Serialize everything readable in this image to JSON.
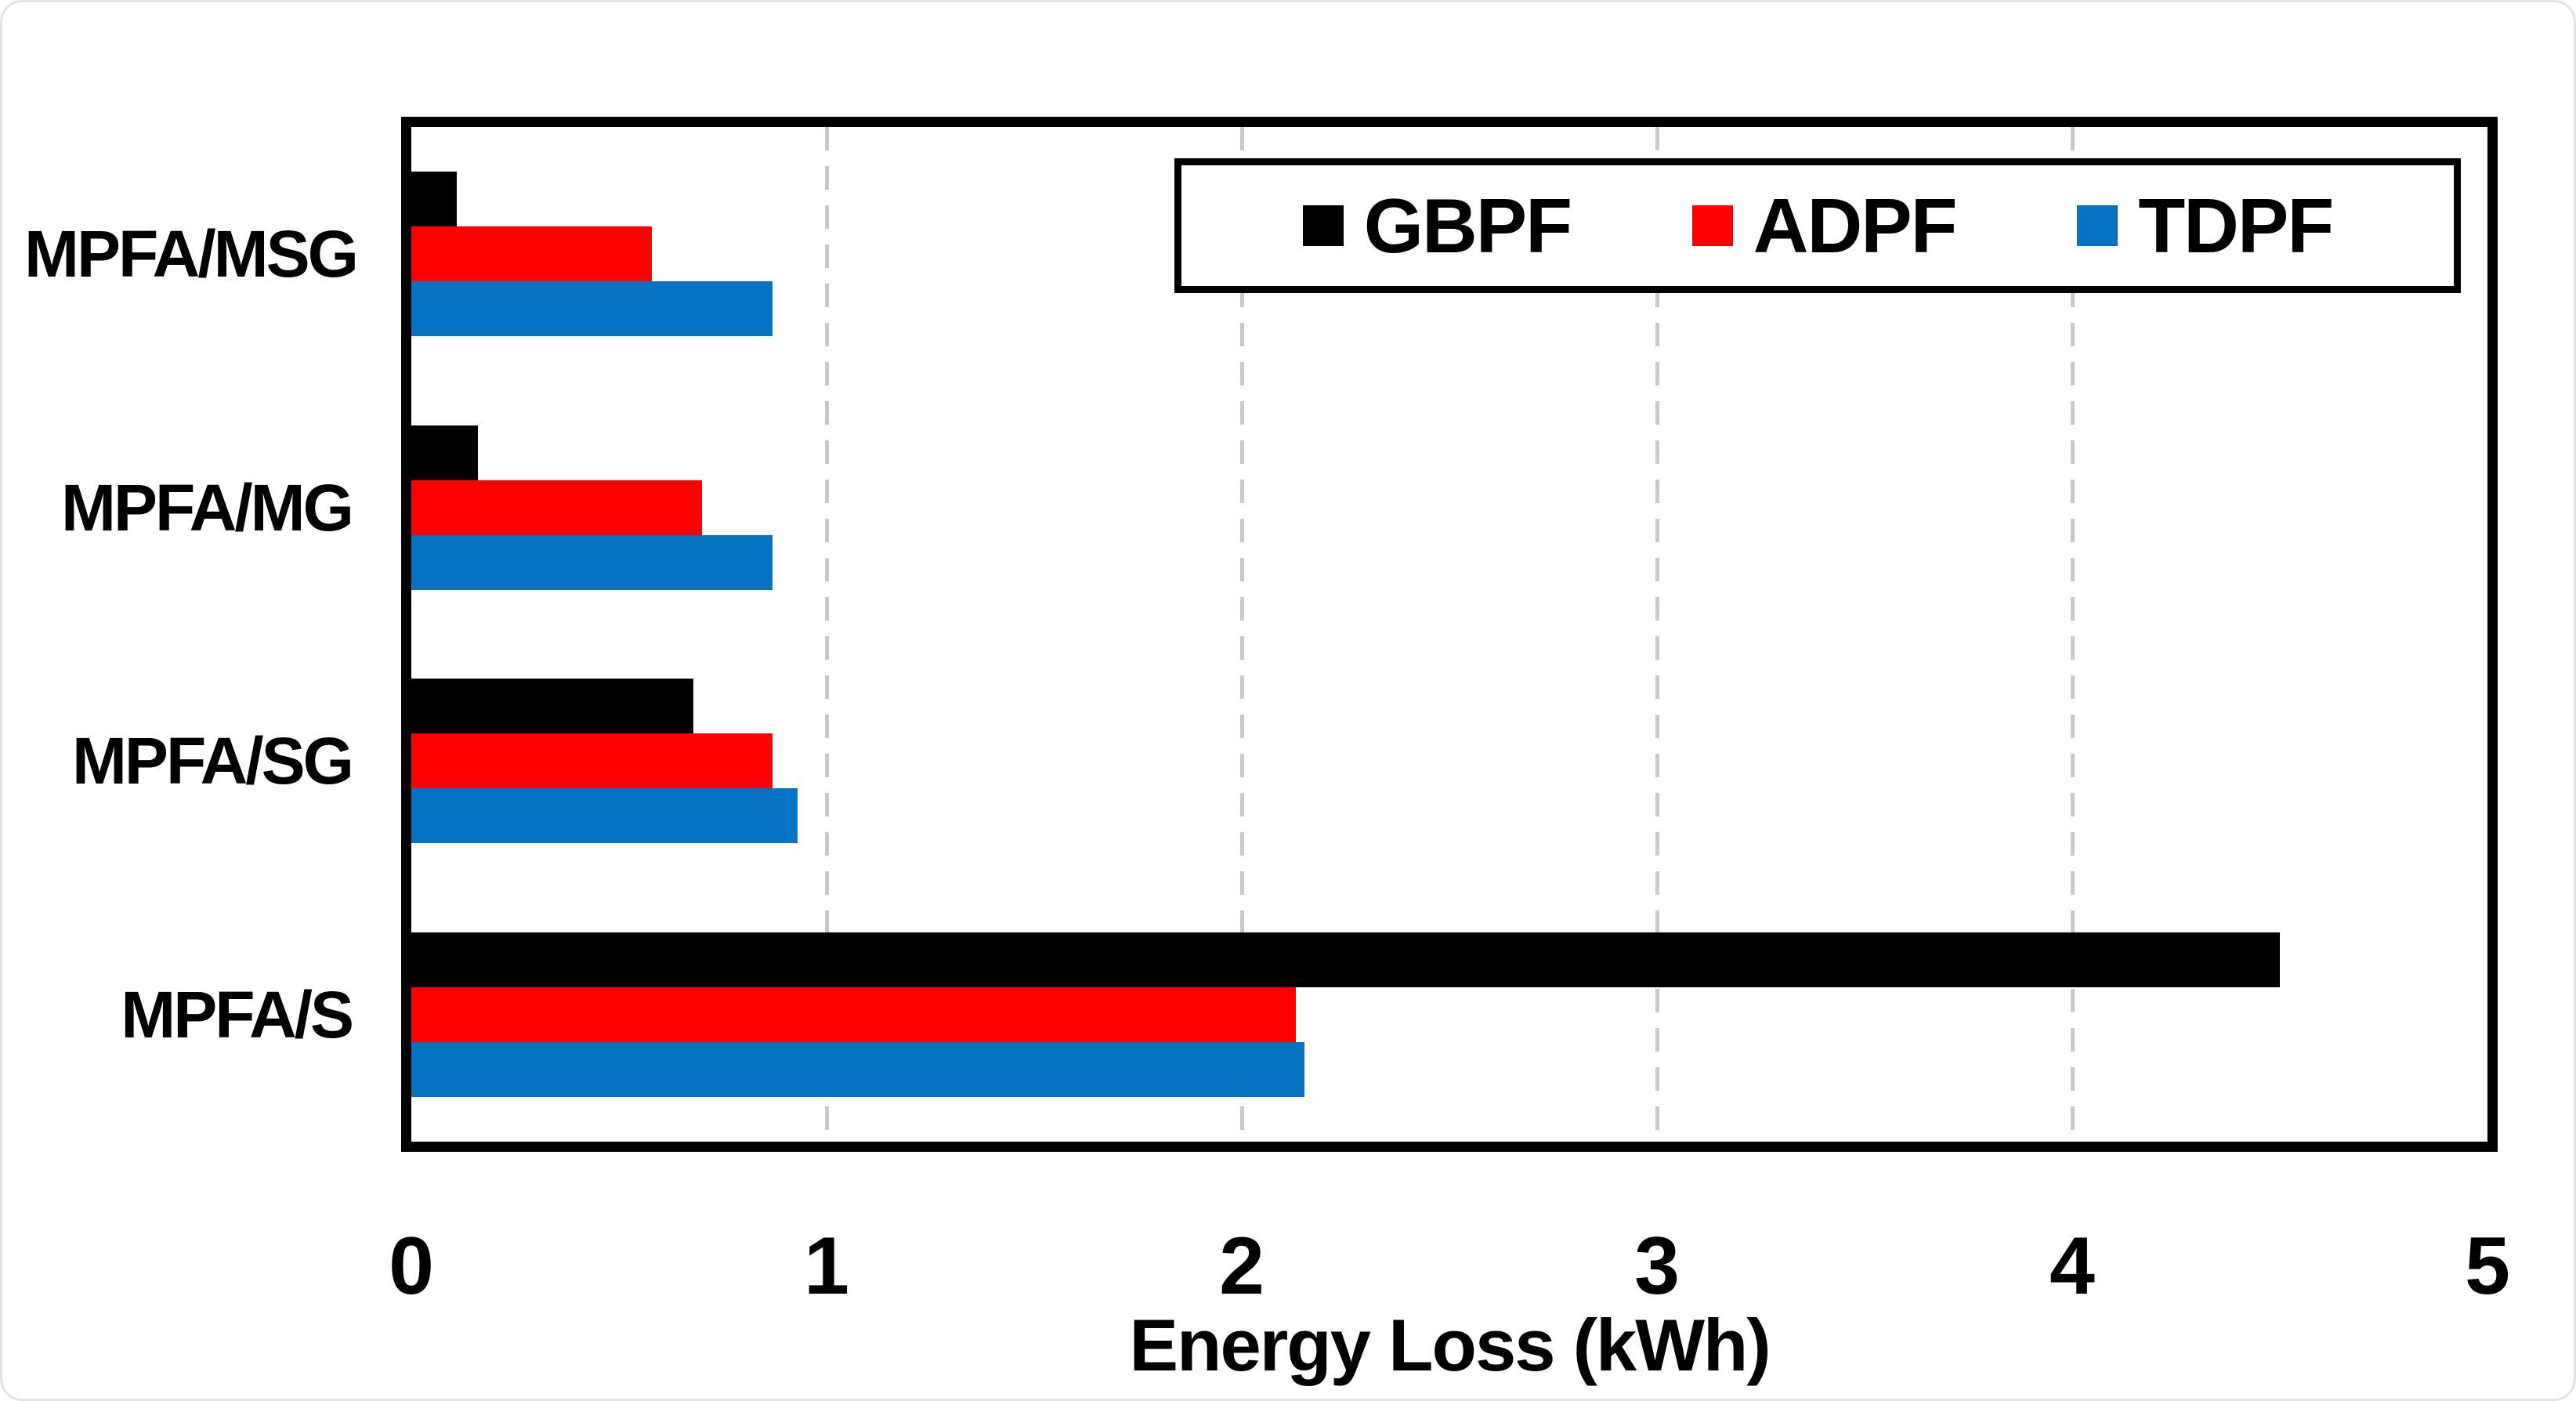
{
  "chart_data": {
    "type": "bar",
    "orientation": "horizontal",
    "title": "",
    "xlabel": "Energy Loss (kWh)",
    "ylabel": "",
    "categories": [
      "MPFA/MSG",
      "MPFA/MG",
      "MPFA/SG",
      "MPFA/S"
    ],
    "series": [
      {
        "name": "GBPF",
        "color": "#000000",
        "values": [
          0.11,
          0.16,
          0.68,
          4.5
        ]
      },
      {
        "name": "ADPF",
        "color": "#FF0000",
        "values": [
          0.58,
          0.7,
          0.87,
          2.13
        ]
      },
      {
        "name": "TDPF",
        "color": "#0572C2",
        "values": [
          0.87,
          0.87,
          0.93,
          2.15
        ]
      }
    ],
    "xlim": [
      0,
      5
    ],
    "xticks": [
      0,
      1,
      2,
      3,
      4,
      5
    ],
    "grid": "vertical dashed",
    "legend_position": "top-right inside"
  },
  "colors": {
    "grid": "#C9C9C9",
    "axis": "#000000",
    "background": "#FFFFFF"
  }
}
